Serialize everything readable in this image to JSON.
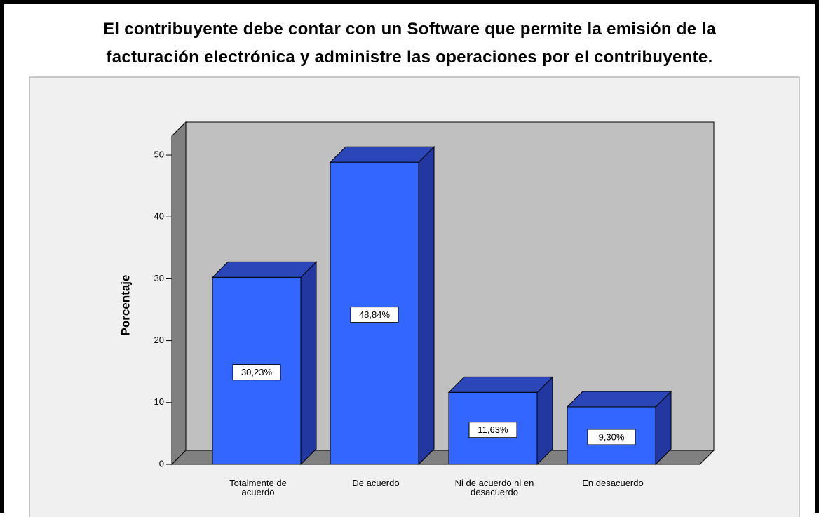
{
  "chart_data": {
    "type": "bar3d",
    "title_lines": [
      "El contribuyente debe contar con un Software que permite la emisión de la",
      "facturación electrónica y administre las operaciones por el contribuyente."
    ],
    "y_label": "Porcentaje",
    "categories": [
      "Totalmente de acuerdo",
      "De acuerdo",
      "Ni de acuerdo ni en desacuerdo",
      "En desacuerdo"
    ],
    "values": [
      30.23,
      48.84,
      11.63,
      9.3
    ],
    "value_labels": [
      "30,23%",
      "48,84%",
      "11,63%",
      "9,30%"
    ],
    "color": "#3366ff",
    "ylim": [
      0,
      50
    ],
    "yticks": [
      0,
      10,
      20,
      30,
      40,
      50
    ]
  }
}
